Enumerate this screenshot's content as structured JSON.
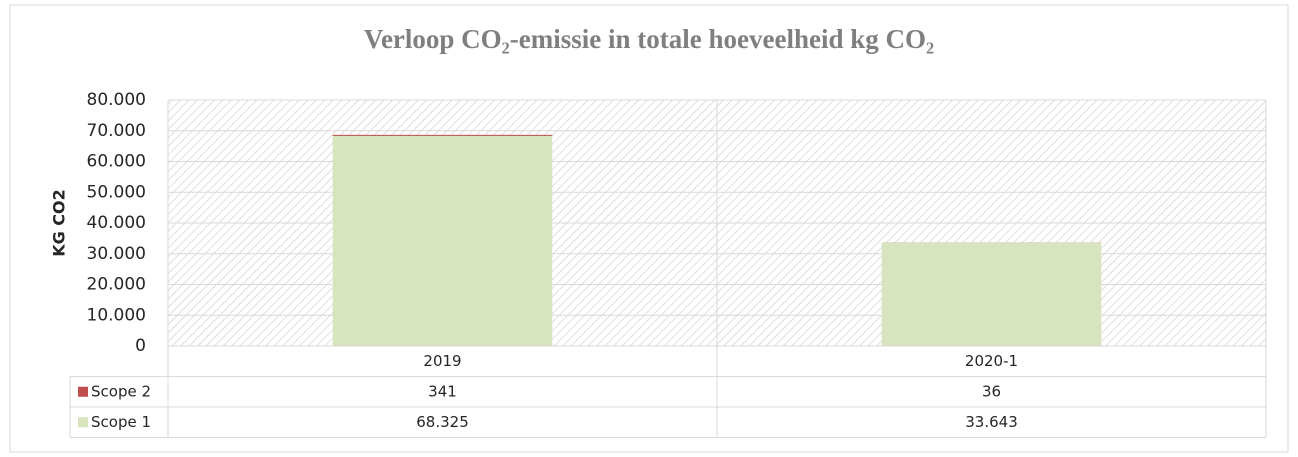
{
  "chart_data": {
    "type": "stacked_bar",
    "title": "Verloop CO₂-emissie in totale hoeveelheid kg CO₂",
    "y_label": "KG CO2",
    "categories": [
      "2019",
      "2020-1"
    ],
    "series": [
      {
        "name": "Scope 1",
        "color": "#d7e4bd",
        "values": [
          68325,
          33643
        ],
        "value_labels": [
          "68.325",
          "33.643"
        ]
      },
      {
        "name": "Scope 2",
        "color": "#c0504d",
        "values": [
          341,
          36
        ]
      }
    ],
    "ylim": [
      0,
      80000
    ],
    "yticks": [
      0,
      {
        "value": 10000,
        "label": "10.000"
      },
      {
        "value": 20000,
        "label": "20.000"
      },
      {
        "value": 30000,
        "label": "30.000"
      },
      {
        "value": 40000,
        "label": "40.000"
      },
      {
        "value": 50000,
        "label": "50.000"
      },
      {
        "value": 60000,
        "label": "60.000"
      },
      {
        "value": 70000,
        "label": "70.000"
      },
      {
        "value": 80000,
        "label": "80.000"
      }
    ],
    "grid": true,
    "data_table": true
  }
}
